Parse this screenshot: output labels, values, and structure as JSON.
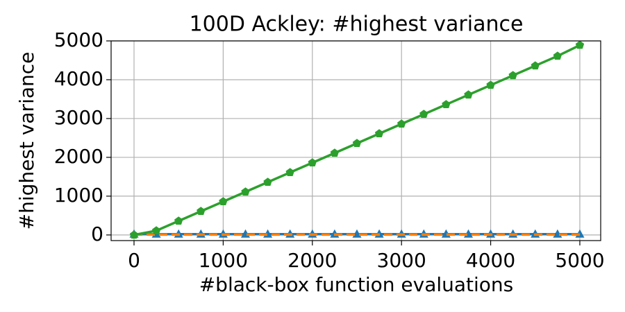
{
  "chart_data": {
    "type": "line",
    "title": "100D Ackley: #highest variance",
    "xlabel": "#black-box function evaluations",
    "ylabel": "#highest variance",
    "x": [
      0,
      250,
      500,
      750,
      1000,
      1250,
      1500,
      1750,
      2000,
      2250,
      2500,
      2750,
      3000,
      3250,
      3500,
      3750,
      4000,
      4250,
      4500,
      4750,
      5000
    ],
    "series": [
      {
        "color": "#1f77b4",
        "marker": "triangle",
        "dash": false,
        "values": [
          20,
          20,
          20,
          20,
          20,
          20,
          20,
          20,
          20,
          20,
          20,
          20,
          20,
          20,
          20,
          20,
          20,
          20,
          20,
          20,
          20
        ]
      },
      {
        "color": "#ff7f0e",
        "marker": "none",
        "dash": true,
        "values": [
          10,
          10,
          10,
          10,
          10,
          10,
          10,
          10,
          10,
          10,
          10,
          10,
          10,
          10,
          10,
          10,
          10,
          10,
          10,
          10,
          10
        ]
      },
      {
        "color": "#2ca02c",
        "marker": "pentagon",
        "dash": false,
        "values": [
          0,
          110,
          360,
          610,
          860,
          1110,
          1360,
          1610,
          1860,
          2110,
          2360,
          2610,
          2860,
          3110,
          3360,
          3610,
          3860,
          4110,
          4360,
          4610,
          4890
        ]
      }
    ],
    "xlim": [
      -257,
      5234
    ],
    "ylim": [
      -145,
      5000
    ],
    "xticks": [
      0,
      1000,
      2000,
      3000,
      4000,
      5000
    ],
    "yticks": [
      0,
      1000,
      2000,
      3000,
      4000,
      5000
    ],
    "grid": true
  }
}
